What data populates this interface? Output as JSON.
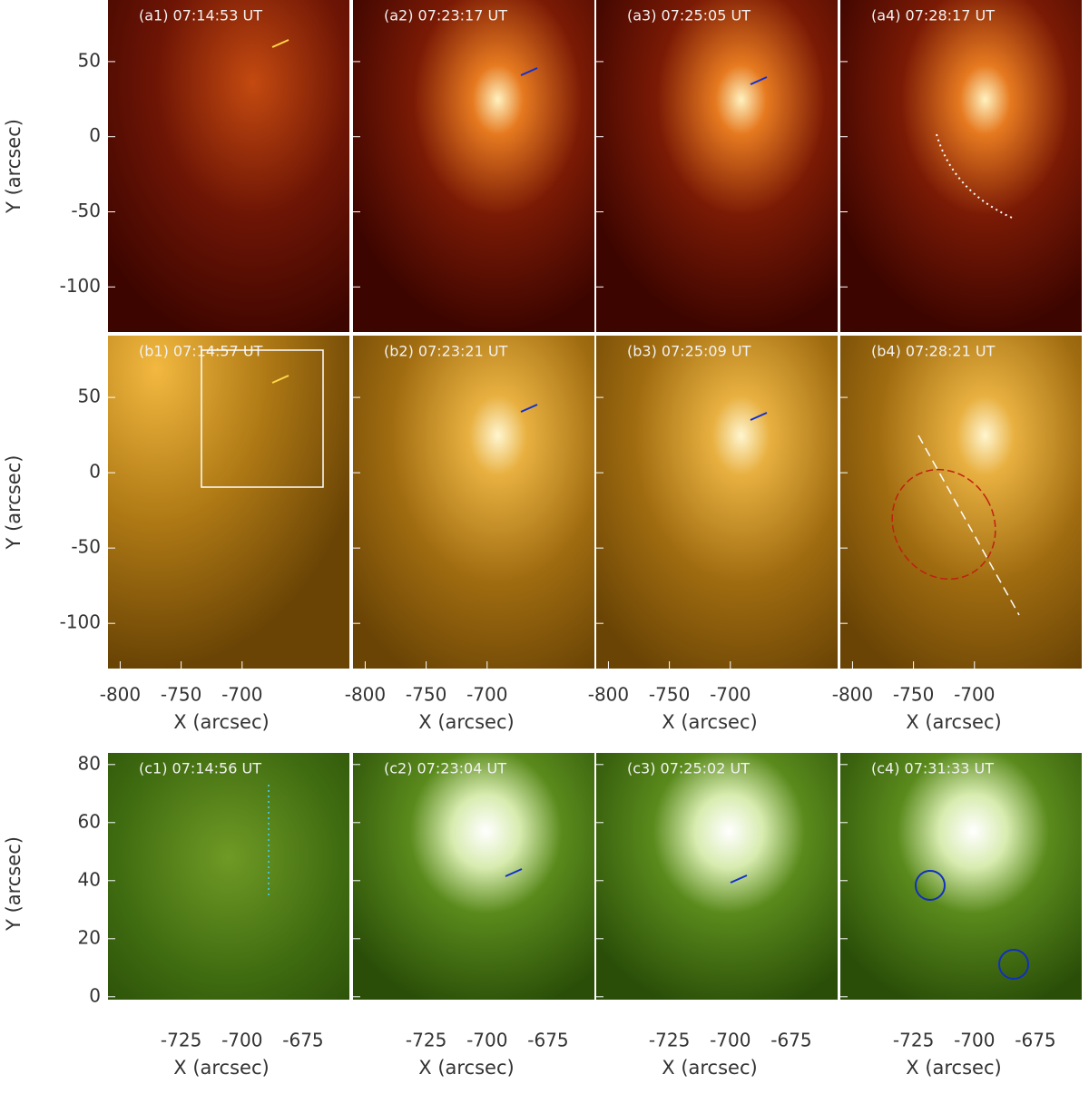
{
  "chart_data": [
    {
      "type": "image",
      "panels": [
        "(a1) 07:14:53 UT",
        "(a2) 07:23:17 UT",
        "(a3) 07:25:05 UT",
        "(a4) 07:28:17 UT"
      ],
      "ylabel": "Y (arcsec)",
      "xlim": [
        -810,
        -612
      ],
      "ylim": [
        -130,
        91
      ],
      "yticks": [
        50,
        0,
        -50,
        -100
      ]
    },
    {
      "type": "image",
      "panels": [
        "(b1) 07:14:57 UT",
        "(b2) 07:23:21 UT",
        "(b3) 07:25:09 UT",
        "(b4) 07:28:21 UT"
      ],
      "xlabel": "X (arcsec)",
      "ylabel": "Y (arcsec)",
      "xlim": [
        -810,
        -612
      ],
      "ylim": [
        -130,
        91
      ],
      "xticks": [
        -800,
        -750,
        -700
      ],
      "yticks": [
        50,
        0,
        -50,
        -100
      ]
    },
    {
      "type": "image",
      "panels": [
        "(c1) 07:14:56 UT",
        "(c2) 07:23:04 UT",
        "(c3) 07:25:02 UT",
        "(c4) 07:31:33 UT"
      ],
      "xlabel": "X (arcsec)",
      "ylabel": "Y (arcsec)",
      "xlim": [
        -755,
        -656
      ],
      "ylim": [
        -6,
        84
      ],
      "xticks": [
        -725,
        -700,
        -675
      ],
      "yticks": [
        80,
        60,
        40,
        20,
        0
      ]
    }
  ]
}
